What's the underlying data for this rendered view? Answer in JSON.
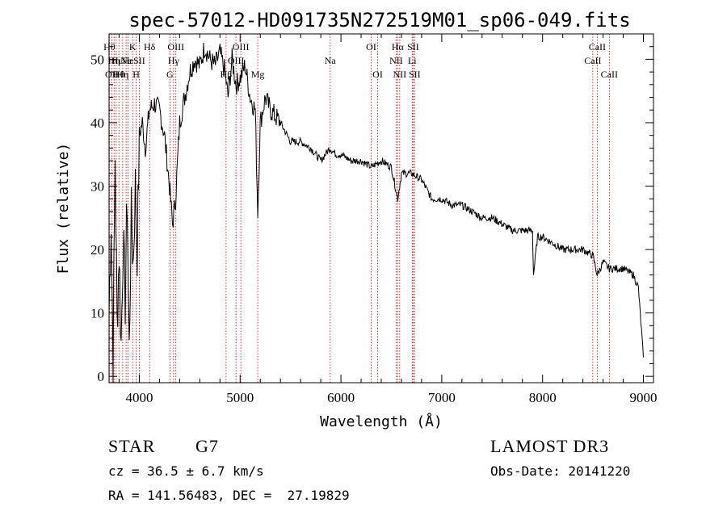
{
  "chart_data": {
    "type": "line",
    "title": "spec-57012-HD091735N272519M01_sp06-049.fits",
    "xlabel": "Wavelength (Å)",
    "ylabel": "Flux (relative)",
    "xlim": [
      3700,
      9100
    ],
    "ylim": [
      -1,
      54
    ],
    "x_ticks": [
      4000,
      5000,
      6000,
      7000,
      8000,
      9000
    ],
    "y_ticks": [
      0,
      10,
      20,
      30,
      40,
      50
    ],
    "series": [
      {
        "name": "flux",
        "x": [
          3700,
          3720,
          3740,
          3760,
          3780,
          3800,
          3820,
          3840,
          3860,
          3880,
          3900,
          3920,
          3940,
          3960,
          3980,
          4000,
          4030,
          4060,
          4100,
          4150,
          4200,
          4250,
          4300,
          4330,
          4360,
          4400,
          4450,
          4500,
          4550,
          4600,
          4650,
          4700,
          4750,
          4800,
          4850,
          4880,
          4920,
          4960,
          5000,
          5050,
          5100,
          5150,
          5175,
          5200,
          5250,
          5300,
          5400,
          5500,
          5600,
          5700,
          5800,
          5890,
          5950,
          6000,
          6100,
          6200,
          6300,
          6400,
          6500,
          6563,
          6600,
          6700,
          6800,
          6900,
          7000,
          7100,
          7200,
          7300,
          7400,
          7500,
          7600,
          7700,
          7800,
          7900,
          7910,
          7950,
          8000,
          8100,
          8200,
          8300,
          8400,
          8500,
          8542,
          8600,
          8662,
          8700,
          8800,
          8900,
          8950,
          9000
        ],
        "values": [
          10,
          25,
          3,
          35,
          8,
          20,
          5,
          22,
          12,
          28,
          4,
          25,
          18,
          30,
          20,
          38,
          40,
          36,
          42,
          43,
          42,
          38,
          30,
          24,
          28,
          40,
          44,
          48,
          50,
          49,
          52,
          50,
          49,
          51,
          48,
          44,
          50,
          46,
          47,
          49,
          44,
          42,
          26,
          40,
          44,
          42,
          40,
          37,
          37,
          36,
          34,
          36,
          35,
          35,
          34,
          34,
          33,
          34,
          33,
          28,
          32,
          32,
          31,
          28,
          28,
          27,
          27,
          26,
          25,
          25,
          24,
          23,
          23,
          23,
          16,
          22,
          22,
          21,
          20,
          20,
          20,
          19,
          16,
          18,
          17,
          17,
          17,
          16,
          14,
          3
        ]
      }
    ],
    "lines": [
      {
        "wl": 3703,
        "label": "Hθ",
        "row": 0
      },
      {
        "wl": 3727,
        "label": "OII",
        "row": 2
      },
      {
        "wl": 3750,
        "label": "Hη",
        "row": 1
      },
      {
        "wl": 3771,
        "label": "Hι",
        "row": 1
      },
      {
        "wl": 3798,
        "label": "Hθ",
        "row": 2
      },
      {
        "wl": 3835,
        "label": "Hη",
        "row": 2
      },
      {
        "wl": 3869,
        "label": "Ne",
        "row": 1
      },
      {
        "wl": 3889,
        "label": "He",
        "row": 1
      },
      {
        "wl": 3934,
        "label": "K",
        "row": 0
      },
      {
        "wl": 3969,
        "label": "H",
        "row": 2
      },
      {
        "wl": 4000,
        "label": "SII",
        "row": 1
      },
      {
        "wl": 4102,
        "label": "Hδ",
        "row": 0
      },
      {
        "wl": 4304,
        "label": "G",
        "row": 2
      },
      {
        "wl": 4340,
        "label": "Hγ",
        "row": 1
      },
      {
        "wl": 4363,
        "label": "OIII",
        "row": 0
      },
      {
        "wl": 4861,
        "label": "Hβ",
        "row": 2
      },
      {
        "wl": 4959,
        "label": "OIII",
        "row": 1
      },
      {
        "wl": 5007,
        "label": "OIII",
        "row": 0
      },
      {
        "wl": 5175,
        "label": "Mg",
        "row": 2
      },
      {
        "wl": 5893,
        "label": "Na",
        "row": 1
      },
      {
        "wl": 6300,
        "label": "OI",
        "row": 0
      },
      {
        "wl": 6364,
        "label": "OI",
        "row": 2
      },
      {
        "wl": 6548,
        "label": "NII",
        "row": 1
      },
      {
        "wl": 6563,
        "label": "Hα",
        "row": 0
      },
      {
        "wl": 6583,
        "label": "NII",
        "row": 2
      },
      {
        "wl": 6707,
        "label": "Li",
        "row": 1
      },
      {
        "wl": 6716,
        "label": "SII",
        "row": 0
      },
      {
        "wl": 6731,
        "label": "SII",
        "row": 2
      },
      {
        "wl": 8498,
        "label": "CaII",
        "row": 1
      },
      {
        "wl": 8542,
        "label": "CaII",
        "row": 0
      },
      {
        "wl": 8662,
        "label": "CaII",
        "row": 2
      }
    ]
  },
  "info": {
    "class": "STAR",
    "subclass": "G7",
    "survey": "LAMOST DR3",
    "cz": "cz = 36.5 ± 6.7 km/s",
    "obs_date": "Obs-Date: 20141220",
    "coords": "RA = 141.56483, DEC =  27.19829"
  }
}
